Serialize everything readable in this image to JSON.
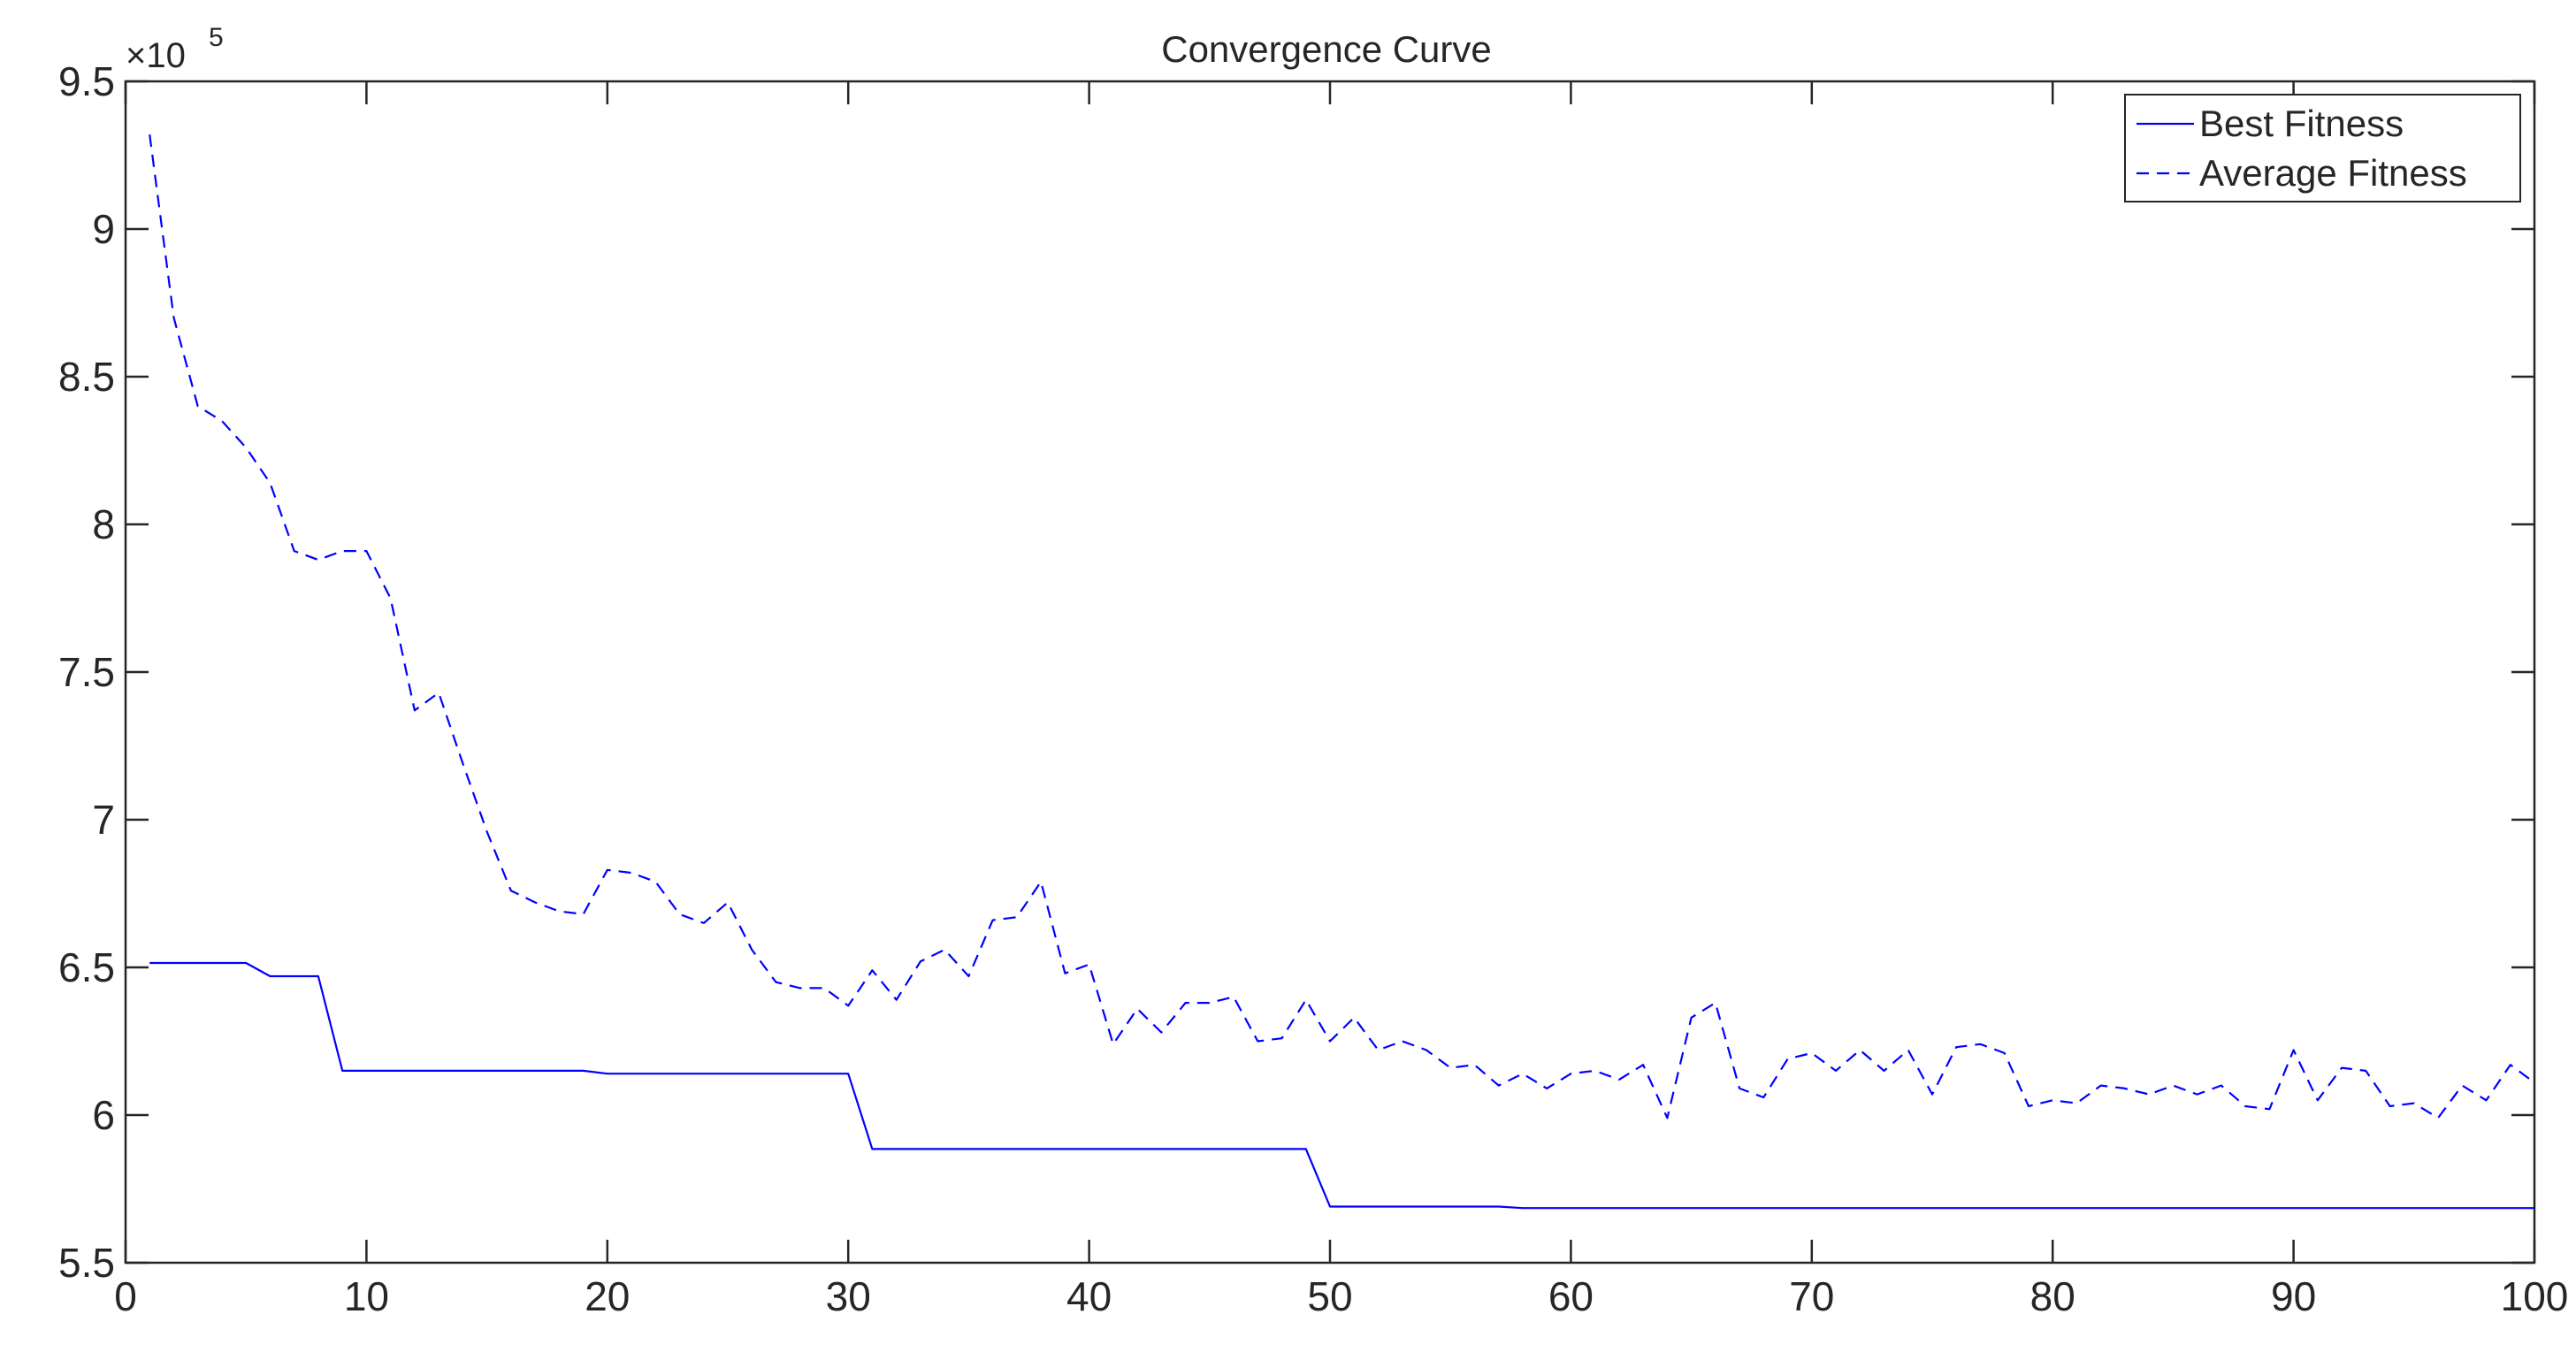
{
  "chart_data": {
    "type": "line",
    "title": "Convergence Curve",
    "xlabel": "",
    "ylabel": "",
    "xlim": [
      0,
      100
    ],
    "ylim": [
      550000,
      950000
    ],
    "xticks": [
      0,
      10,
      20,
      30,
      40,
      50,
      60,
      70,
      80,
      90,
      100
    ],
    "xtick_labels": [
      "0",
      "10",
      "20",
      "30",
      "40",
      "50",
      "60",
      "70",
      "80",
      "90",
      "100"
    ],
    "yticks": [
      550000,
      600000,
      650000,
      700000,
      750000,
      800000,
      850000,
      900000,
      950000
    ],
    "ytick_labels": [
      "5.5",
      "6",
      "6.5",
      "7",
      "7.5",
      "8",
      "8.5",
      "9",
      "9.5"
    ],
    "y_multiplier_base": "×10",
    "y_multiplier_exponent": "5",
    "grid": false,
    "legend_position": "top-right",
    "colors": {
      "series": "#0000ff",
      "axes": "#262626"
    },
    "x": [
      1,
      2,
      3,
      4,
      5,
      6,
      7,
      8,
      9,
      10,
      11,
      12,
      13,
      14,
      15,
      16,
      17,
      18,
      19,
      20,
      21,
      22,
      23,
      24,
      25,
      26,
      27,
      28,
      29,
      30,
      31,
      32,
      33,
      34,
      35,
      36,
      37,
      38,
      39,
      40,
      41,
      42,
      43,
      44,
      45,
      46,
      47,
      48,
      49,
      50,
      51,
      52,
      53,
      54,
      55,
      56,
      57,
      58,
      59,
      60,
      61,
      62,
      63,
      64,
      65,
      66,
      67,
      68,
      69,
      70,
      71,
      72,
      73,
      74,
      75,
      76,
      77,
      78,
      79,
      80,
      81,
      82,
      83,
      84,
      85,
      86,
      87,
      88,
      89,
      90,
      91,
      92,
      93,
      94,
      95,
      96,
      97,
      98,
      99,
      100
    ],
    "series": [
      {
        "name": "Best Fitness",
        "line_style": "solid",
        "values": [
          651500,
          651500,
          651500,
          651500,
          651500,
          647000,
          647000,
          647000,
          615000,
          615000,
          615000,
          615000,
          615000,
          615000,
          615000,
          615000,
          615000,
          615000,
          615000,
          614000,
          614000,
          614000,
          614000,
          614000,
          614000,
          614000,
          614000,
          614000,
          614000,
          614000,
          588500,
          588500,
          588500,
          588500,
          588500,
          588500,
          588500,
          588500,
          588500,
          588500,
          588500,
          588500,
          588500,
          588500,
          588500,
          588500,
          588500,
          588500,
          588500,
          569000,
          569000,
          569000,
          569000,
          569000,
          569000,
          569000,
          569000,
          568500,
          568500,
          568500,
          568500,
          568500,
          568500,
          568500,
          568500,
          568500,
          568500,
          568500,
          568500,
          568500,
          568500,
          568500,
          568500,
          568500,
          568500,
          568500,
          568500,
          568500,
          568500,
          568500,
          568500,
          568500,
          568500,
          568500,
          568500,
          568500,
          568500,
          568500,
          568500,
          568500,
          568500,
          568500,
          568500,
          568500,
          568500,
          568500,
          568500,
          568500,
          568500,
          568500
        ]
      },
      {
        "name": "Average Fitness",
        "line_style": "dashed",
        "values": [
          932000,
          870000,
          840000,
          835000,
          826000,
          814000,
          791000,
          788000,
          791000,
          791000,
          775000,
          737000,
          743000,
          719000,
          696000,
          676000,
          672000,
          669000,
          668000,
          683000,
          682000,
          679000,
          668000,
          665000,
          672000,
          656000,
          645000,
          643000,
          643000,
          637000,
          649000,
          639000,
          652000,
          656000,
          647000,
          666000,
          667000,
          679000,
          648000,
          651000,
          624000,
          636000,
          628000,
          638000,
          638000,
          640000,
          625000,
          626000,
          639000,
          625000,
          633000,
          622000,
          625000,
          622000,
          616000,
          617000,
          610000,
          614000,
          609000,
          614000,
          615000,
          612000,
          617000,
          599000,
          633000,
          638000,
          609000,
          606000,
          619000,
          621000,
          615000,
          622000,
          615000,
          622000,
          607000,
          623000,
          624000,
          621000,
          603000,
          605000,
          604000,
          610000,
          609000,
          607000,
          610000,
          607000,
          610000,
          603000,
          602000,
          622000,
          605000,
          616000,
          615000,
          603000,
          604000,
          599000,
          610000,
          605000,
          617000,
          611000
        ]
      }
    ]
  }
}
